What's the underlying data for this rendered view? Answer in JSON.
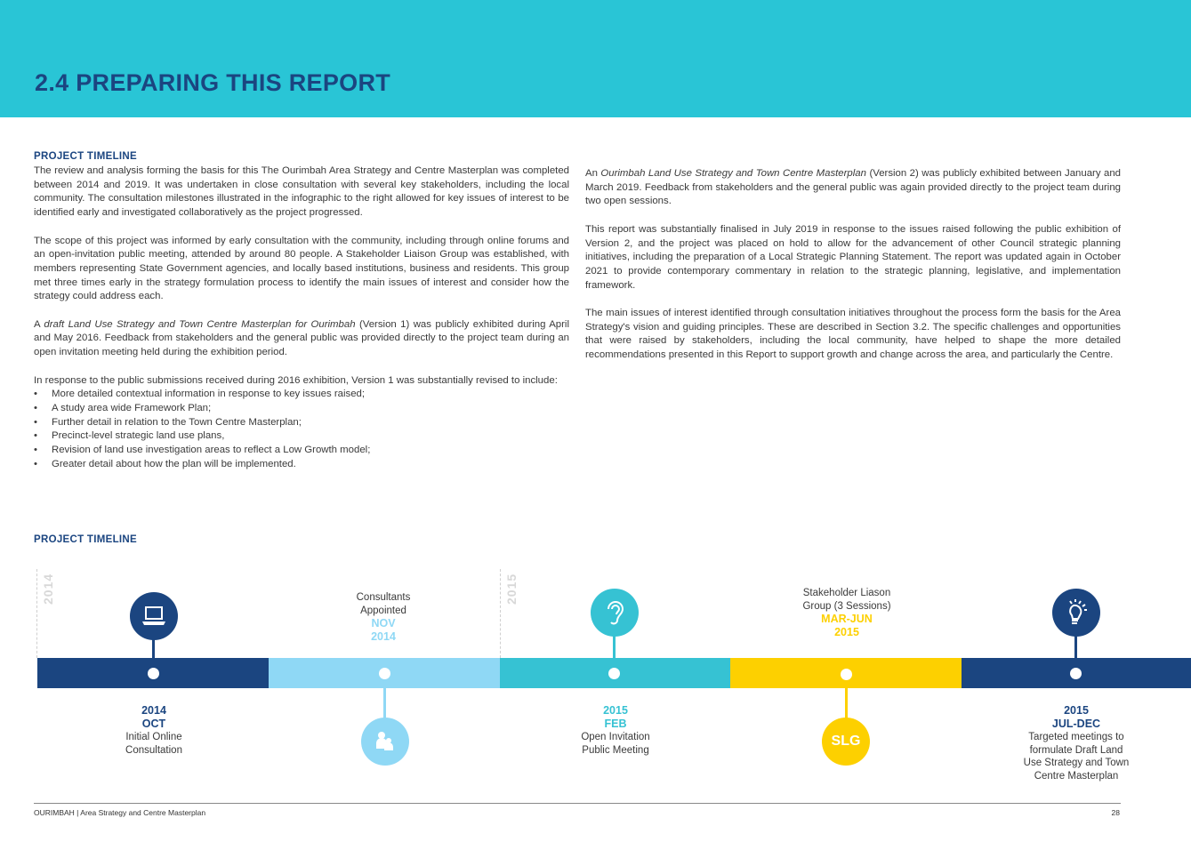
{
  "header": {
    "title": "2.4 PREPARING THIS REPORT"
  },
  "left": {
    "heading": "PROJECT TIMELINE",
    "p1": "The review and analysis forming the basis for this The Ourimbah Area Strategy and Centre Masterplan was completed between 2014 and 2019. It was undertaken in close consultation with several key stakeholders, including the local community. The consultation milestones illustrated in the infographic to the right allowed for key issues of interest to be identified early and investigated collaboratively as the project progressed.",
    "p2": "The scope of this project was informed by early consultation with the community, including through online forums and an open-invitation public meeting, attended by around 80 people. A Stakeholder Liaison Group was established, with members representing State Government agencies, and locally based institutions, business and residents. This group met three times early in the strategy formulation process to identify the main issues of interest and consider how the strategy could address each.",
    "p3_pre": "A ",
    "p3_em": "draft Land Use Strategy and Town Centre Masterplan for Ourimbah",
    "p3_post": " (Version 1) was publicly exhibited during April and May 2016. Feedback from stakeholders and the general public was provided directly to the project team during an open invitation meeting held during the exhibition period.",
    "p4": "In response to the public submissions received during 2016 exhibition, Version 1 was substantially revised to include:",
    "bullets": [
      "More detailed contextual information in response to key issues raised;",
      "A study area wide Framework Plan;",
      "Further detail in relation to the Town Centre Masterplan;",
      "Precinct-level strategic land use plans,",
      "Revision of land use investigation areas to reflect a Low Growth model;",
      "Greater detail about how the plan will be implemented."
    ]
  },
  "right": {
    "p1_pre": "An ",
    "p1_em": "Ourimbah Land Use Strategy and Town Centre Masterplan",
    "p1_post": " (Version 2) was publicly exhibited between January and March 2019. Feedback from stakeholders and the general public was again provided directly to the project team during two open sessions.",
    "p2": "This report was substantially finalised in July 2019 in response to the issues raised following the public exhibition of Version 2, and the project was placed on hold to allow for the advancement of other Council strategic planning initiatives, including the preparation of a Local Strategic Planning Statement. The report was updated again in October 2021 to provide contemporary commentary in relation to the strategic planning, legislative, and implementation framework.",
    "p3": "The main issues of interest identified through consultation initiatives throughout the process form the basis for the Area Strategy's vision and guiding principles. These are described in Section 3.2. The specific challenges and opportunities that were raised by stakeholders, including the local community, have helped to shape the more detailed recommendations presented in this Report to support growth and change across the area, and particularly the Centre."
  },
  "timeline": {
    "heading": "PROJECT TIMELINE",
    "year_markers": [
      "2014",
      "2015"
    ],
    "colors": {
      "navy": "#1b4580",
      "light_blue": "#8fd8f5",
      "teal": "#36c2d3",
      "yellow": "#fdd000"
    },
    "events": [
      {
        "year": "2014",
        "month": "OCT",
        "text": "Initial Online Consultation",
        "icon": "laptop-icon"
      },
      {
        "text": "Consultants Appointed",
        "month": "NOV",
        "year": "2014",
        "icon": "people-icon"
      },
      {
        "year": "2015",
        "month": "FEB",
        "text": "Open Invitation Public Meeting",
        "icon": "ear-icon"
      },
      {
        "text": "Stakeholder Liason Group (3 Sessions)",
        "month": "MAR-JUN",
        "year": "2015",
        "icon": "slg-badge",
        "badge": "SLG"
      },
      {
        "year": "2015",
        "month": "JUL-DEC",
        "text": "Targeted meetings to formulate Draft Land Use Strategy and Town Centre Masterplan",
        "icon": "lightbulb-icon"
      }
    ]
  },
  "footer": {
    "left": "OURIMBAH | Area Strategy and Centre Masterplan",
    "page": "28"
  }
}
